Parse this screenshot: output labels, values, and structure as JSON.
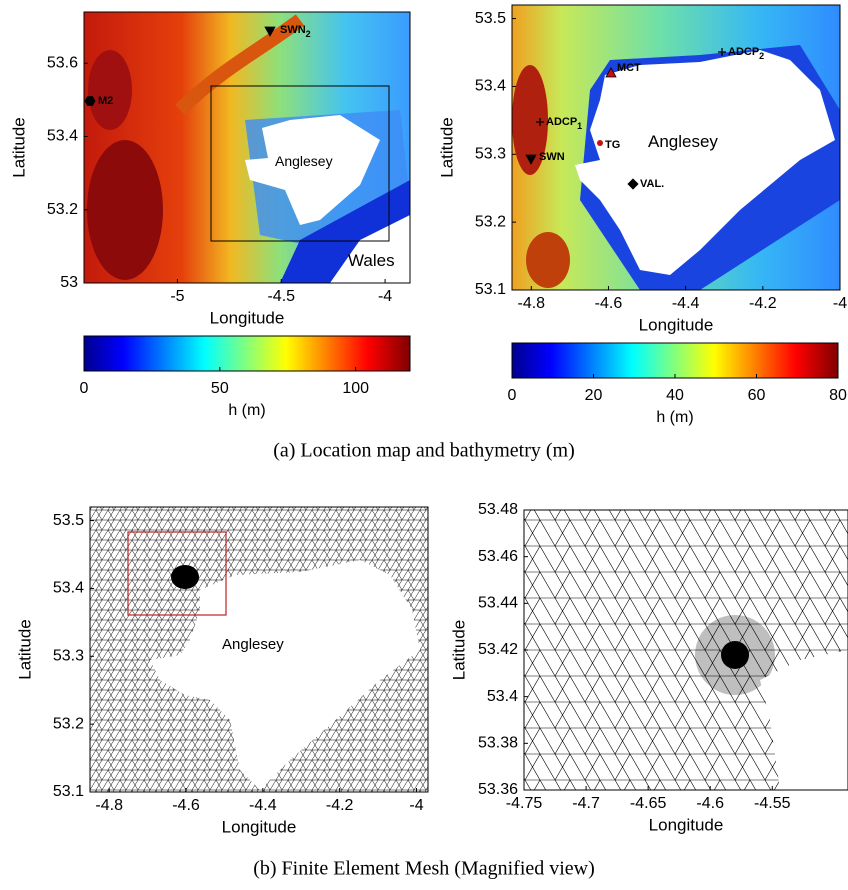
{
  "figure": {
    "panels": [
      {
        "xlabel": "Longitude",
        "ylabel": "Latitude",
        "xlim": [
          -5.45,
          -3.88
        ],
        "ylim": [
          53,
          53.74
        ],
        "xticks": [
          -5,
          -4.5,
          -4
        ],
        "yticks": [
          53,
          53.2,
          53.4,
          53.6
        ],
        "annotations": [
          {
            "text": "SWN",
            "sub": "2"
          },
          {
            "text": "M2"
          },
          {
            "text": "Anglesey"
          },
          {
            "text": "Wales"
          }
        ],
        "colorbar": {
          "label": "h (m)",
          "lim": [
            0,
            120
          ],
          "ticks": [
            0,
            50,
            100
          ]
        }
      },
      {
        "xlabel": "Longitude",
        "ylabel": "Latitude",
        "xlim": [
          -4.85,
          -4
        ],
        "ylim": [
          53.1,
          53.52
        ],
        "xticks": [
          -4.8,
          -4.6,
          -4.4,
          -4.2,
          -4
        ],
        "yticks": [
          53.1,
          53.2,
          53.3,
          53.4,
          53.5
        ],
        "annotations": [
          {
            "text": "MCT"
          },
          {
            "text": "ADCP",
            "sub": "2"
          },
          {
            "text": "ADCP",
            "sub": "1"
          },
          {
            "text": "Anglesey"
          },
          {
            "text": "TG"
          },
          {
            "text": "SWN"
          },
          {
            "text": "VAL."
          }
        ],
        "colorbar": {
          "label": "h (m)",
          "lim": [
            0,
            80
          ],
          "ticks": [
            0,
            20,
            40,
            60,
            80
          ]
        }
      },
      {
        "xlabel": "Longitude",
        "ylabel": "Latitude",
        "xlim": [
          -4.85,
          -3.97
        ],
        "ylim": [
          53.1,
          53.52
        ],
        "xticks": [
          -4.8,
          -4.6,
          -4.4,
          -4.2,
          -4
        ],
        "yticks": [
          53.1,
          53.2,
          53.3,
          53.4,
          53.5
        ],
        "annotations": [
          {
            "text": "Anglesey"
          }
        ]
      },
      {
        "xlabel": "Longitude",
        "ylabel": "Latitude",
        "xlim": [
          -4.75,
          -4.489
        ],
        "ylim": [
          53.36,
          53.48
        ],
        "xticks": [
          -4.75,
          -4.7,
          -4.65,
          -4.6,
          -4.55
        ],
        "yticks": [
          53.36,
          53.38,
          53.4,
          53.42,
          53.44,
          53.46,
          53.48
        ],
        "annotations": []
      }
    ],
    "captions": [
      "(a) Location map and bathymetry (m)",
      "(b) Finite Element Mesh (Magnified view)"
    ]
  }
}
